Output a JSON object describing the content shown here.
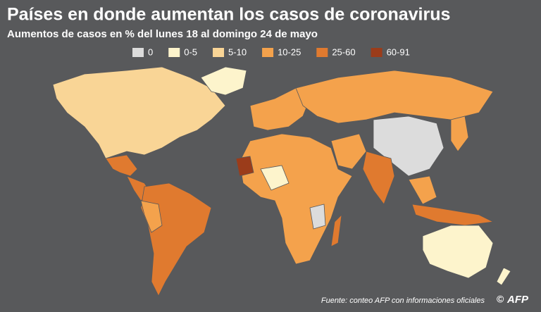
{
  "header": {
    "title": "Países en donde aumentan los casos de coronavirus",
    "subtitle": "Aumentos de casos en % del lunes 18 al domingo 24 de mayo"
  },
  "legend": [
    {
      "label": "0",
      "color": "#dcdcdc"
    },
    {
      "label": "0-5",
      "color": "#fdf4cc"
    },
    {
      "label": "5-10",
      "color": "#f9d596"
    },
    {
      "label": "10-25",
      "color": "#f4a24c"
    },
    {
      "label": "25-60",
      "color": "#e07a2f"
    },
    {
      "label": "60-91",
      "color": "#9b3c1a"
    }
  ],
  "source": "Fuente: conteo AFP con informaciones oficiales",
  "logo": "AFP"
}
